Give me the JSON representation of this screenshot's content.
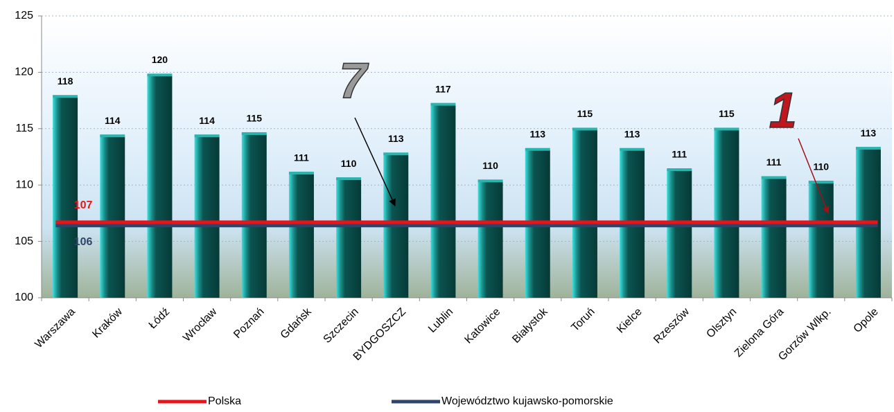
{
  "chart_data": {
    "type": "bar",
    "categories": [
      "Warszawa",
      "Kraków",
      "Łódź",
      "Wrocław",
      "Poznań",
      "Gdańsk",
      "Szczecin",
      "BYDGOSZCZ",
      "Lublin",
      "Katowice",
      "Białystok",
      "Toruń",
      "Kielce",
      "Rzeszów",
      "Olsztyn",
      "Zielona Góra",
      "Gorzów Wlkp.",
      "Opole"
    ],
    "values": [
      117.8,
      114.3,
      119.7,
      114.3,
      114.5,
      111.0,
      110.5,
      112.7,
      117.1,
      110.3,
      113.1,
      114.9,
      113.1,
      111.3,
      114.9,
      110.6,
      110.2,
      113.2
    ],
    "value_labels": [
      "118",
      "114",
      "120",
      "114",
      "115",
      "111",
      "110",
      "113",
      "117",
      "110",
      "113",
      "115",
      "113",
      "111",
      "115",
      "111",
      "110",
      "113"
    ],
    "color": "#0b5450",
    "reference_lines": [
      {
        "name": "Polska",
        "color": "#e8141b",
        "value": 106.7,
        "value_label": "107"
      },
      {
        "name": "Województwo kujawsko-pomorskie",
        "color": "#2e4468",
        "value": 106.4,
        "value_label": "106"
      }
    ],
    "annotations": [
      {
        "text": "7",
        "category": "BYDGOSZCZ",
        "color": "#9a9a9a"
      },
      {
        "text": "1",
        "category": "Gorzów Wlkp.",
        "color": "#c0161e"
      }
    ],
    "ylim": [
      100,
      125
    ],
    "yticks": [
      100,
      105,
      110,
      115,
      120,
      125
    ],
    "grid": true,
    "legend": "bottom"
  }
}
